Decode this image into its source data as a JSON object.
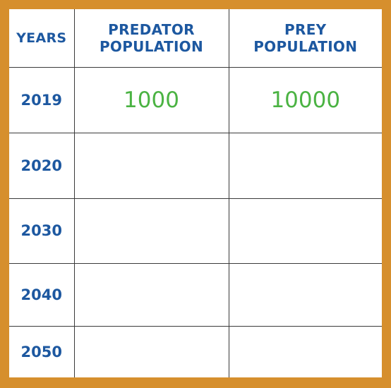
{
  "header": {
    "years": "YEARS",
    "predator_line1": "PREDATOR",
    "predator_line2": "POPULATION",
    "prey_line1": "PREY",
    "prey_line2": "POPULATION"
  },
  "rows": [
    {
      "year": "2019",
      "predator": "1000",
      "prey": "10000"
    },
    {
      "year": "2020",
      "predator": "",
      "prey": ""
    },
    {
      "year": "2030",
      "predator": "",
      "prey": ""
    },
    {
      "year": "2040",
      "predator": "",
      "prey": ""
    },
    {
      "year": "2050",
      "predator": "",
      "prey": ""
    }
  ],
  "colors": {
    "frame": "#d68f2d",
    "header_text": "#1d58a0",
    "value_text": "#4bb343"
  }
}
